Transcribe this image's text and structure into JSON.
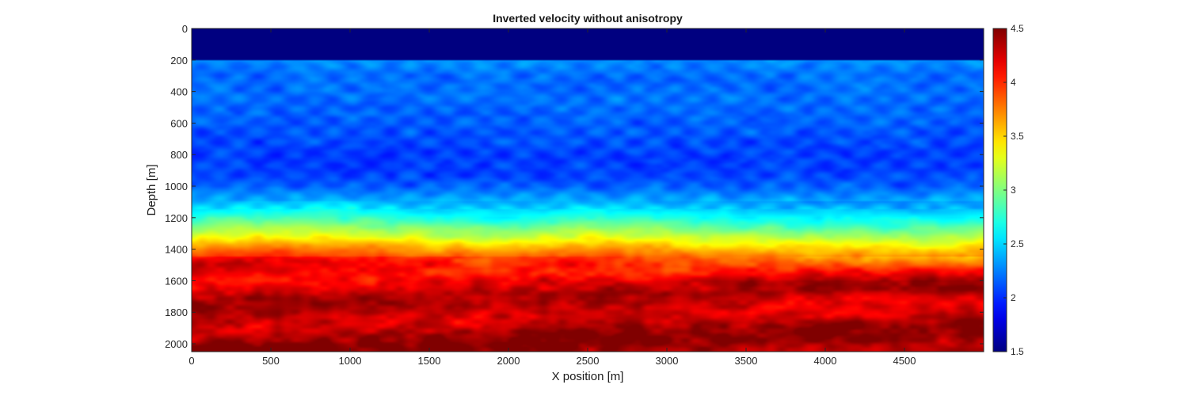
{
  "chart_data": {
    "type": "heatmap",
    "title": "Inverted velocity without anisotropy",
    "xlabel": "X position [m]",
    "ylabel": "Depth [m]",
    "xlim": [
      0,
      5000
    ],
    "ylim": [
      0,
      2050
    ],
    "y_reversed": true,
    "x_ticks": [
      "0",
      "500",
      "1000",
      "1500",
      "2000",
      "2500",
      "3000",
      "3500",
      "4000",
      "4500"
    ],
    "y_ticks": [
      "0",
      "200",
      "400",
      "600",
      "800",
      "1000",
      "1200",
      "1400",
      "1600",
      "1800",
      "2000"
    ],
    "colorbar": {
      "colormap": "jet",
      "range": [
        1.5,
        4.5
      ],
      "ticks": [
        "1.5",
        "2",
        "2.5",
        "3",
        "3.5",
        "4",
        "4.5"
      ]
    },
    "velocity_profile": {
      "depth": [
        0,
        200,
        205,
        300,
        400,
        600,
        800,
        900,
        1000,
        1100,
        1200,
        1300,
        1400,
        1500,
        1600,
        1800,
        1900,
        2000,
        2050
      ],
      "value": [
        1.5,
        1.5,
        2.3,
        2.2,
        2.2,
        2.15,
        2.05,
        2.05,
        2.15,
        2.4,
        2.75,
        3.2,
        3.7,
        4.15,
        4.25,
        4.3,
        4.35,
        4.4,
        4.45
      ]
    },
    "grid": false,
    "legend": "none"
  }
}
